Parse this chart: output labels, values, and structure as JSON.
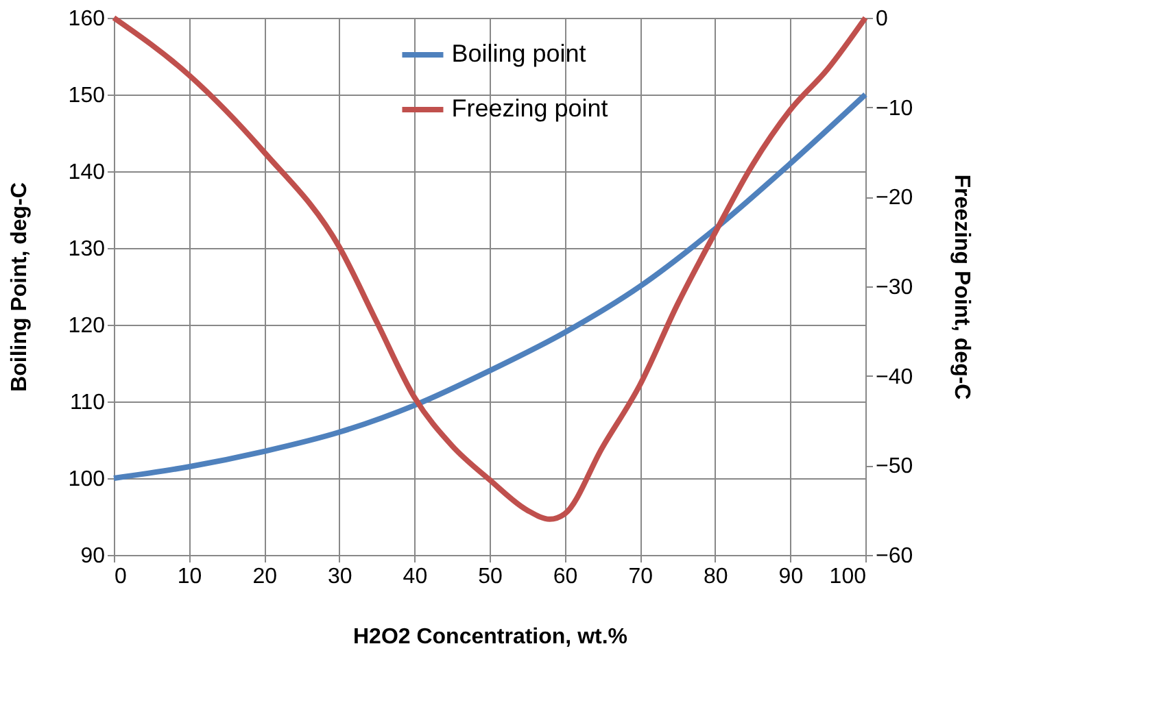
{
  "chart_data": {
    "type": "line",
    "xlabel": "H2O2 Concentration, wt.%",
    "ylabel": "Boiling Point, deg-C",
    "y2label": "Freezing Point, deg-C",
    "xlim": [
      0,
      100
    ],
    "xticks": [
      0,
      10,
      20,
      30,
      40,
      50,
      60,
      70,
      80,
      90,
      100
    ],
    "ylim": [
      90,
      160
    ],
    "yticks": [
      90,
      100,
      110,
      120,
      130,
      140,
      150,
      160
    ],
    "y2lim": [
      -60,
      0
    ],
    "y2ticks": [
      -60,
      -50,
      -40,
      -30,
      -20,
      -10,
      0
    ],
    "grid": true,
    "legend": "top",
    "marker": "none",
    "line_style": "solid",
    "series": [
      {
        "name": "Boiling point",
        "color": "#4f81bd",
        "x": [
          0,
          10,
          20,
          30,
          40,
          50,
          60,
          70,
          80,
          90,
          100
        ],
        "values": [
          100,
          101.5,
          103.5,
          106,
          109.5,
          114,
          119,
          125,
          132.5,
          141,
          150
        ]
      },
      {
        "name": "Freezing point",
        "color": "#c0504d",
        "axis": "y2",
        "x": [
          0,
          10,
          20,
          30,
          35,
          40,
          45,
          50,
          55,
          58,
          60,
          65,
          70,
          75,
          80,
          85,
          90,
          95,
          100
        ],
        "values": [
          0,
          -6.4,
          -15,
          -25.6,
          -34,
          -42.4,
          -47.8,
          -51.6,
          -55,
          -56,
          -55.4,
          -48,
          -41,
          -32,
          -24,
          -16.4,
          -10.3,
          -5.7,
          0
        ]
      }
    ]
  }
}
